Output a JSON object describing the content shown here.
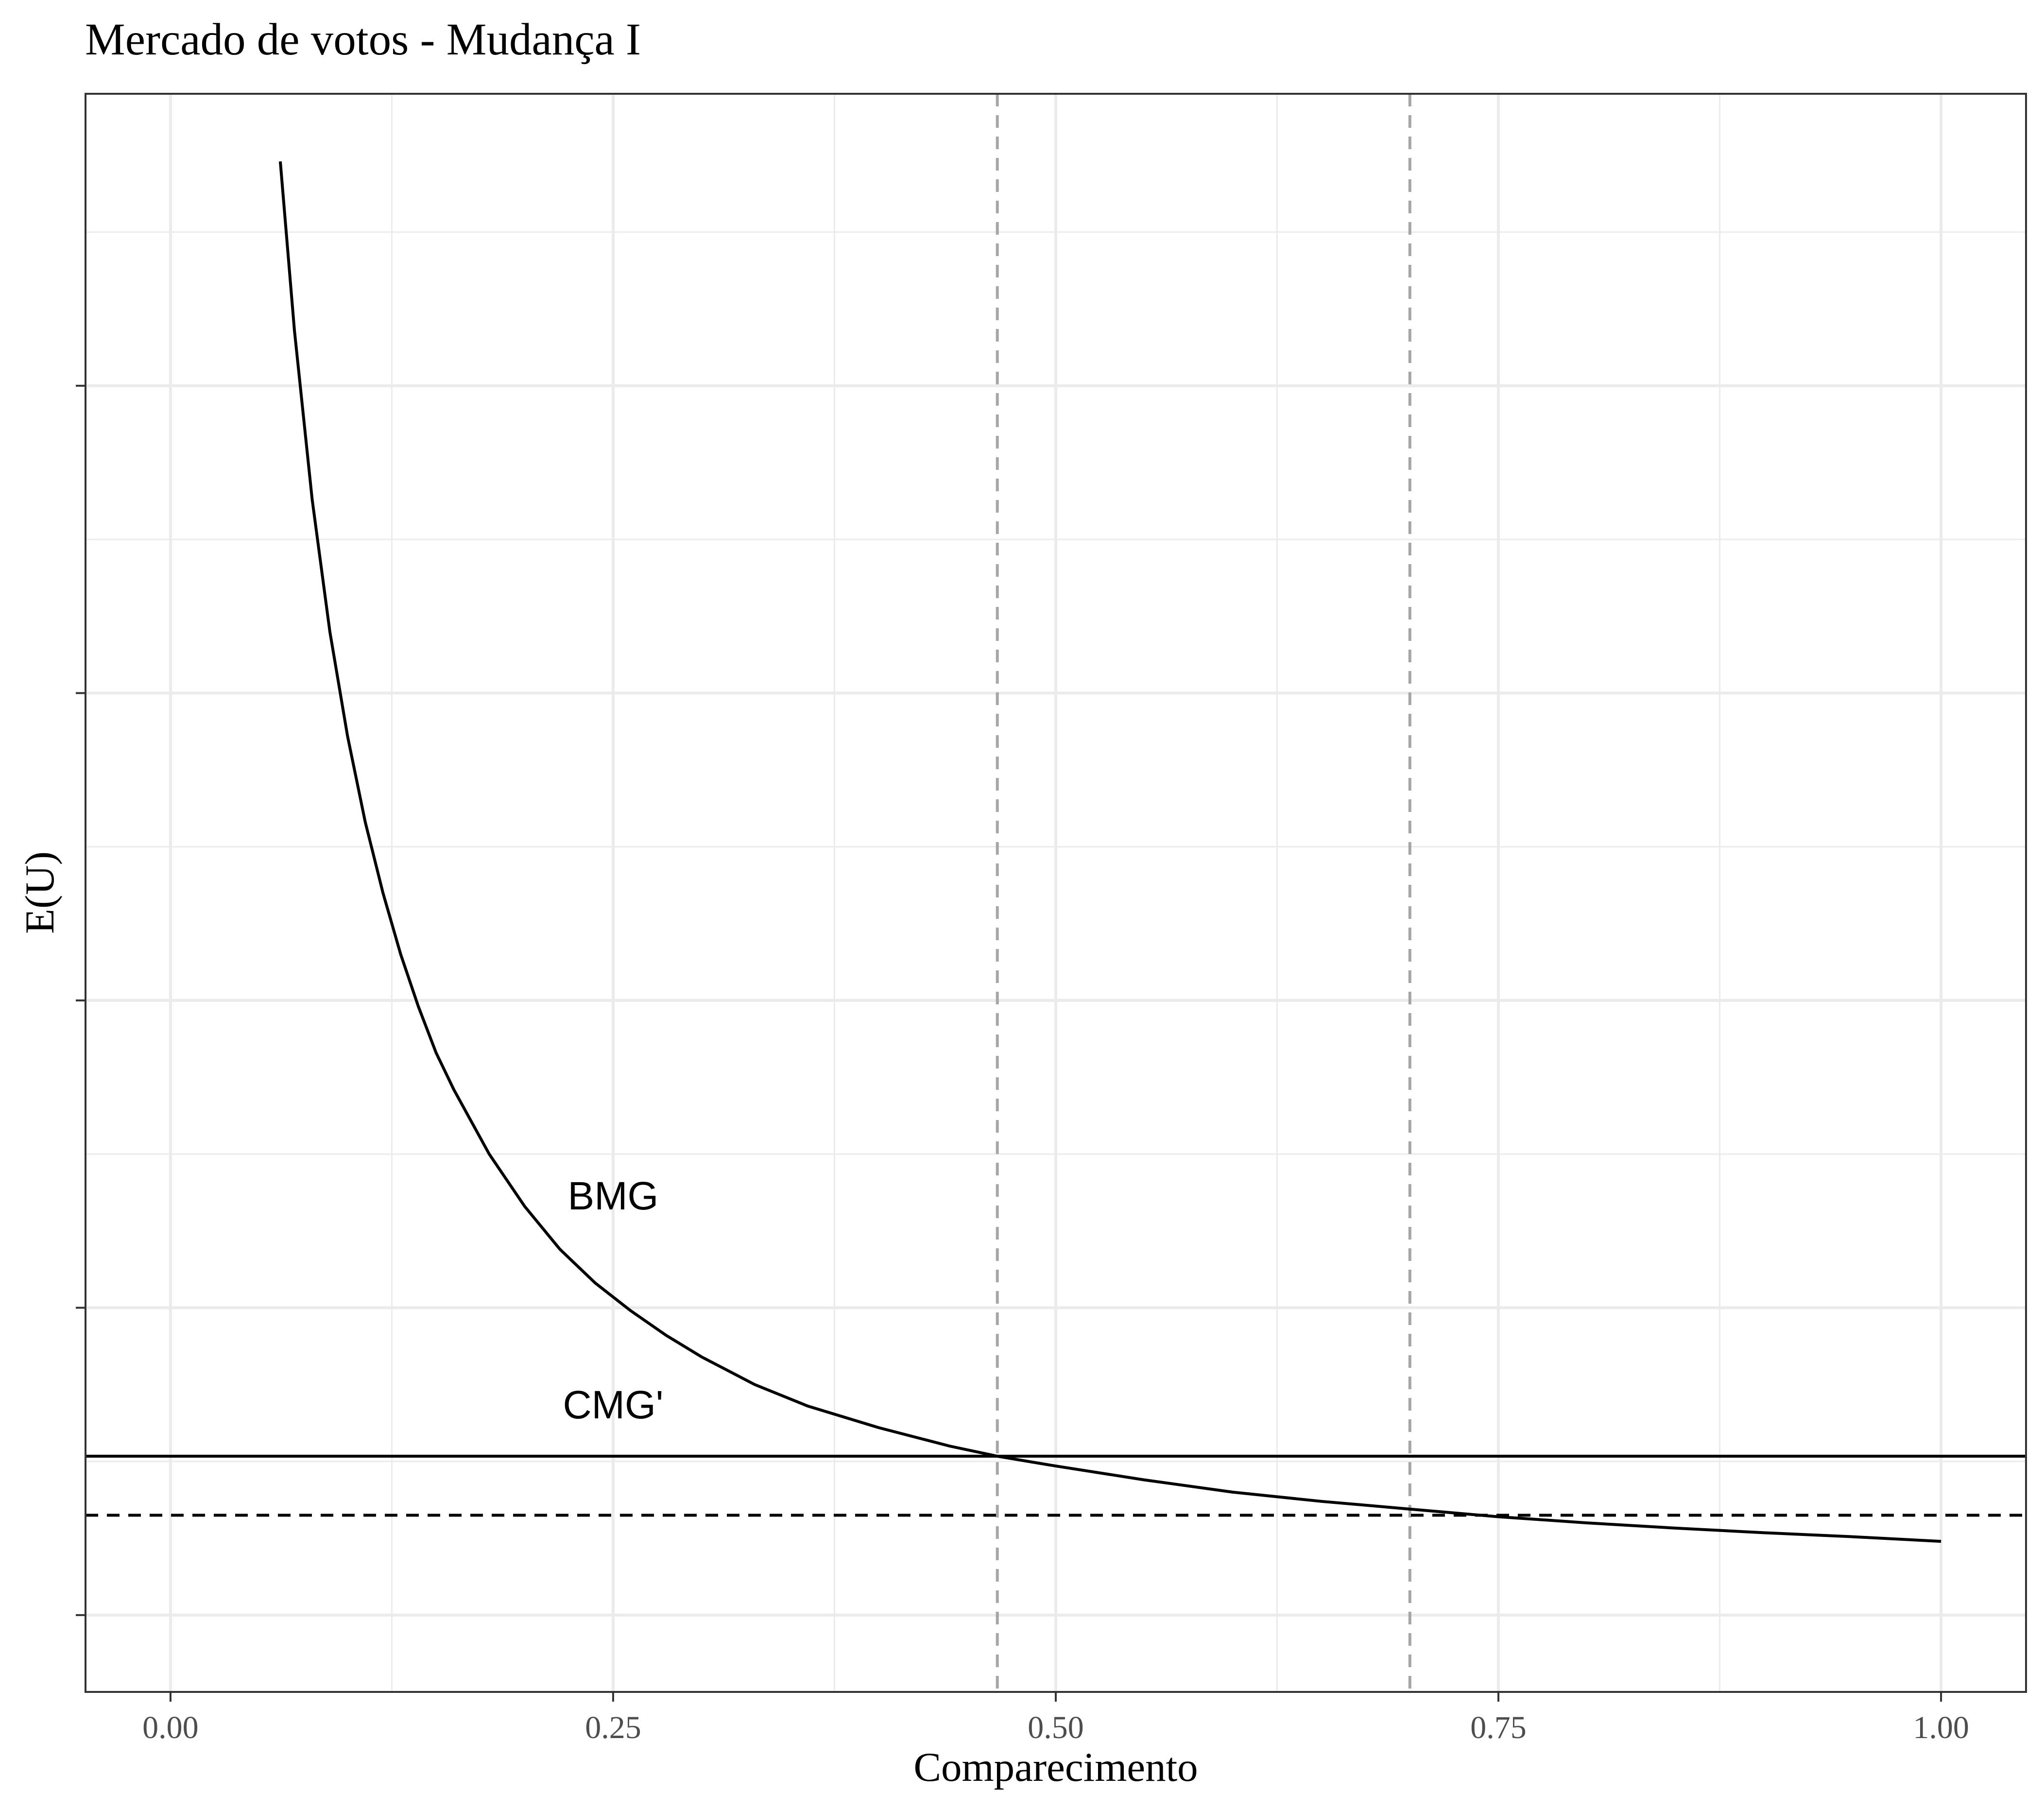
{
  "chart_data": {
    "type": "line",
    "title": "Mercado de votos - Mudança I",
    "xlabel": "Comparecimento",
    "ylabel": "E(U)",
    "xlim": [
      -0.048,
      1.048
    ],
    "ylim": [
      0,
      5.2
    ],
    "x_ticks": [
      0.0,
      0.25,
      0.5,
      0.75,
      1.0
    ],
    "x_tick_labels": [
      "0.00",
      "0.25",
      "0.50",
      "0.75",
      "1.00"
    ],
    "x_minor_ticks": [
      0.125,
      0.375,
      0.625,
      0.875
    ],
    "y_ticks": [
      0.25,
      1.25,
      2.25,
      3.25,
      4.25,
      5.25
    ],
    "y_tick_labels": [
      "",
      "",
      "",
      "",
      "",
      ""
    ],
    "y_minor_ticks": [
      0.75,
      1.75,
      2.75,
      3.75,
      4.75
    ],
    "grid": true,
    "series": [
      {
        "name": "BMG",
        "style": "solid",
        "color": "#000000",
        "x": [
          0.062,
          0.07,
          0.08,
          0.09,
          0.1,
          0.11,
          0.12,
          0.13,
          0.14,
          0.15,
          0.16,
          0.18,
          0.2,
          0.22,
          0.24,
          0.26,
          0.28,
          0.3,
          0.33,
          0.36,
          0.4,
          0.44,
          0.467,
          0.5,
          0.55,
          0.6,
          0.65,
          0.7,
          0.75,
          0.8,
          0.85,
          0.9,
          0.95,
          1.0
        ],
        "y": [
          4.98,
          4.43,
          3.88,
          3.45,
          3.11,
          2.83,
          2.6,
          2.4,
          2.23,
          2.08,
          1.96,
          1.75,
          1.58,
          1.44,
          1.33,
          1.24,
          1.16,
          1.09,
          1.0,
          0.93,
          0.86,
          0.8,
          0.767,
          0.735,
          0.69,
          0.65,
          0.62,
          0.595,
          0.57,
          0.55,
          0.533,
          0.518,
          0.505,
          0.49
        ]
      },
      {
        "name": "CMG'",
        "style": "solid",
        "color": "#000000",
        "y_constant": 0.767
      },
      {
        "name": "",
        "style": "dashed",
        "color": "#000000",
        "y_constant": 0.575
      }
    ],
    "vlines": [
      {
        "x": 0.467,
        "style": "dashed",
        "color": "#a6a6a6"
      },
      {
        "x": 0.7,
        "style": "dashed",
        "color": "#a6a6a6"
      }
    ],
    "annotations": [
      {
        "text": "BMG",
        "x": 0.25,
        "y": 1.57
      },
      {
        "text": "CMG'",
        "x": 0.25,
        "y": 0.89
      }
    ]
  }
}
